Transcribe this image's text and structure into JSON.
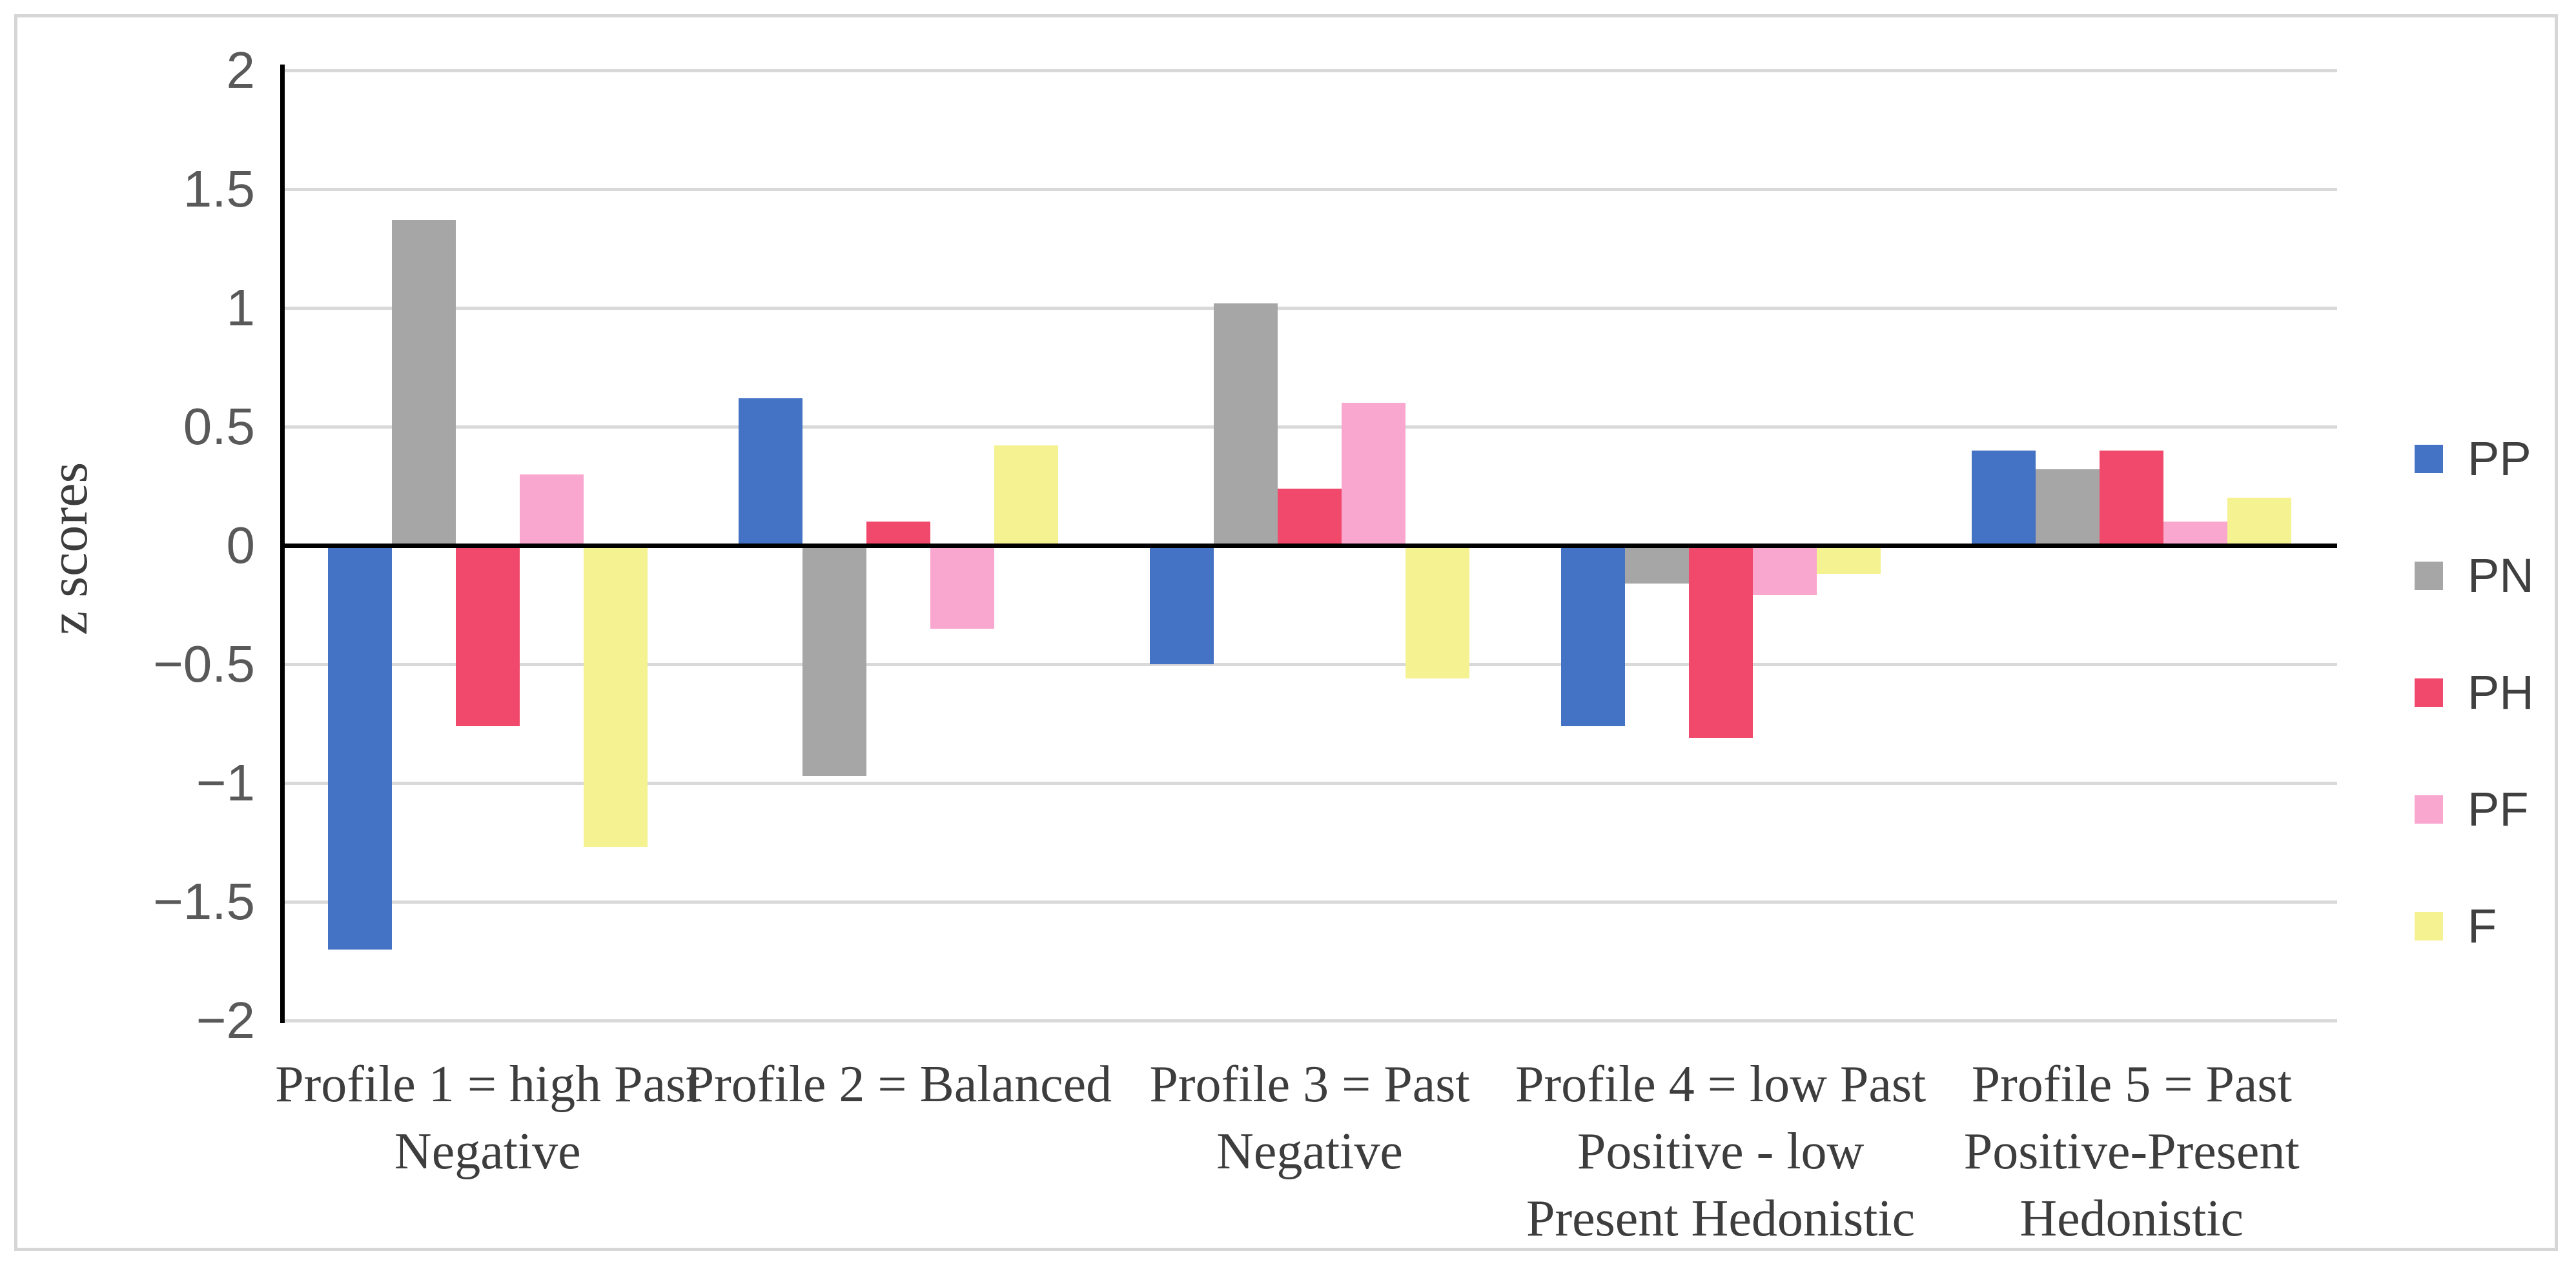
{
  "figure": {
    "background": "#ffffff",
    "border_color": "#d6d6d6"
  },
  "y_axis": {
    "title": "z scores",
    "ticks": [
      {
        "value": 2,
        "label": "2"
      },
      {
        "value": 1.5,
        "label": "1.5"
      },
      {
        "value": 1,
        "label": "1"
      },
      {
        "value": 0.5,
        "label": "0.5"
      },
      {
        "value": 0,
        "label": "0"
      },
      {
        "value": -0.5,
        "label": "−0.5"
      },
      {
        "value": -1,
        "label": "−1"
      },
      {
        "value": -1.5,
        "label": "−1.5"
      },
      {
        "value": -2,
        "label": "−2"
      }
    ],
    "grid_color": "#d9d9d9",
    "axis_color": "#000000",
    "tick_text_color": "#595959"
  },
  "legend": {
    "position": "right",
    "entries": [
      {
        "label": "PP",
        "color": "#4472c4"
      },
      {
        "label": "PN",
        "color": "#a6a6a6"
      },
      {
        "label": "PH",
        "color": "#f1496b"
      },
      {
        "label": "PF",
        "color": "#f9a7ce"
      },
      {
        "label": "F",
        "color": "#f5f292"
      }
    ]
  },
  "chart_data": {
    "type": "bar",
    "title": "",
    "xlabel": "",
    "ylabel": "z scores",
    "ylim": [
      -2,
      2
    ],
    "ytick_step": 0.5,
    "grid": true,
    "legend_position": "right",
    "categories": [
      "Profile 1 = high Past Negative",
      "Profile 2 = Balanced",
      "Profile 3 = Past Negative",
      "Profile 4 = low Past Positive - low Present Hedonistic",
      "Profile 5 = Past Positive-Present Hedonistic"
    ],
    "category_lines": [
      [
        "Profile 1 = high Past",
        "Negative"
      ],
      [
        "Profile 2 = Balanced"
      ],
      [
        "Profile 3 = Past",
        "Negative"
      ],
      [
        "Profile 4 = low Past",
        "Positive - low",
        "Present Hedonistic"
      ],
      [
        "Profile 5 = Past",
        "Positive-Present",
        "Hedonistic"
      ]
    ],
    "series": [
      {
        "name": "PP",
        "color": "#4472c4",
        "values": [
          -1.7,
          0.62,
          -0.5,
          -0.76,
          0.4
        ]
      },
      {
        "name": "PN",
        "color": "#a6a6a6",
        "values": [
          1.37,
          -0.97,
          1.02,
          -0.16,
          0.32
        ]
      },
      {
        "name": "PH",
        "color": "#f1496b",
        "values": [
          -0.76,
          0.1,
          0.24,
          -0.81,
          0.4
        ]
      },
      {
        "name": "PF",
        "color": "#f9a7ce",
        "values": [
          0.3,
          -0.35,
          0.6,
          -0.21,
          0.1
        ]
      },
      {
        "name": "F",
        "color": "#f5f292",
        "values": [
          -1.27,
          0.42,
          -0.56,
          -0.12,
          0.2
        ]
      }
    ]
  }
}
